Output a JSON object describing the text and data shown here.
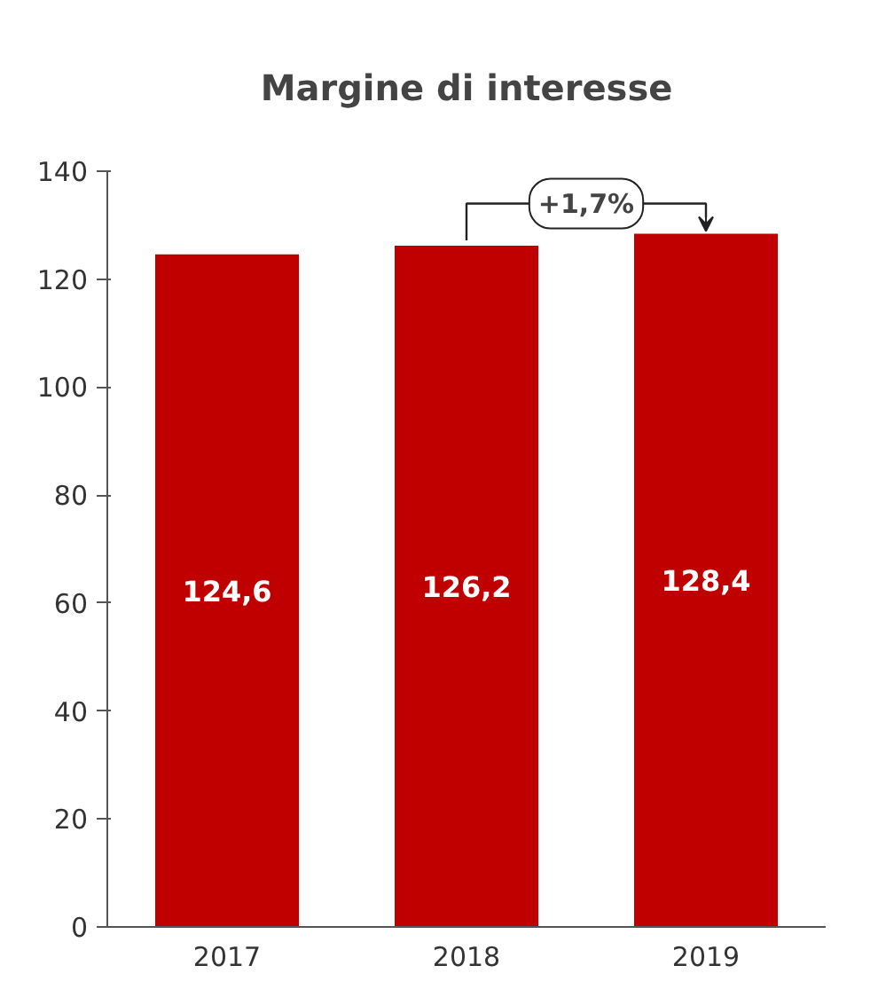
{
  "chart_data": {
    "type": "bar",
    "title": "Margine di interesse",
    "categories": [
      "2017",
      "2018",
      "2019"
    ],
    "values": [
      124.6,
      126.2,
      128.4
    ],
    "value_labels": [
      "124,6",
      "126,2",
      "128,4"
    ],
    "color": "#c00000",
    "ylim": [
      0,
      140
    ],
    "yticks": [
      0,
      20,
      40,
      60,
      80,
      100,
      120,
      140
    ],
    "grid": false,
    "annotations": [
      "+1,7%"
    ]
  }
}
